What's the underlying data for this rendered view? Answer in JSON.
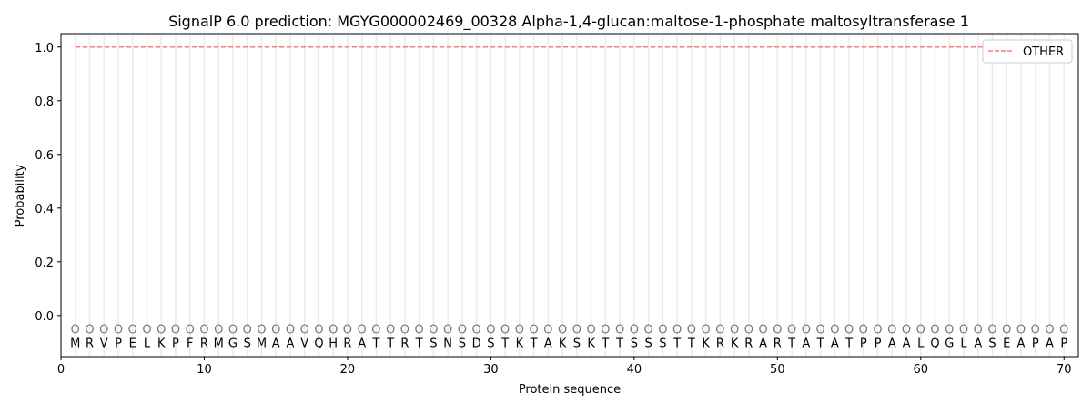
{
  "chart_data": {
    "type": "line",
    "title": "SignalP 6.0 prediction: MGYG000002469_00328 Alpha-1,4-glucan:maltose-1-phosphate maltosyltransferase 1",
    "xlabel": "Protein sequence",
    "ylabel": "Probability",
    "xlim": [
      0,
      71
    ],
    "ylim": [
      -0.153,
      1.05
    ],
    "xticks": [
      0,
      10,
      20,
      30,
      40,
      50,
      60,
      70
    ],
    "yticks": [
      "0.0",
      "0.2",
      "0.4",
      "0.6",
      "0.8",
      "1.0"
    ],
    "grid": "vertical lines at each residue",
    "legend_position": "top-right",
    "sequence": "MRVPELKPFRMGSMAAVQHRATTRTSNSDSTKTAKSKTTSSSTTKRKRARTATATPPAALQGLASEAPAP",
    "per_residue_label": "O",
    "series": [
      {
        "name": "OTHER",
        "color": "#f08080",
        "style": "dashed",
        "x_range": [
          1,
          70
        ],
        "value": 1.0
      }
    ]
  }
}
